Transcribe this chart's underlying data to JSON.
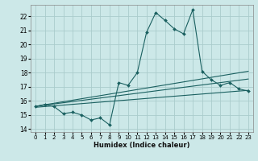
{
  "xlabel": "Humidex (Indice chaleur)",
  "bg_color": "#cce8e8",
  "grid_color": "#aacccc",
  "line_color": "#1a6060",
  "xlim": [
    -0.5,
    23.5
  ],
  "ylim": [
    13.8,
    22.8
  ],
  "yticks": [
    14,
    15,
    16,
    17,
    18,
    19,
    20,
    21,
    22
  ],
  "xticks": [
    0,
    1,
    2,
    3,
    4,
    5,
    6,
    7,
    8,
    9,
    10,
    11,
    12,
    13,
    14,
    15,
    16,
    17,
    18,
    19,
    20,
    21,
    22,
    23
  ],
  "main_line_x": [
    0,
    1,
    2,
    3,
    4,
    5,
    6,
    7,
    8,
    9,
    10,
    11,
    12,
    13,
    14,
    15,
    16,
    17,
    18,
    19,
    20,
    21,
    22,
    23
  ],
  "main_line_y": [
    15.6,
    15.75,
    15.6,
    15.1,
    15.2,
    15.0,
    14.65,
    14.8,
    14.3,
    17.3,
    17.1,
    18.0,
    20.85,
    22.25,
    21.7,
    21.1,
    20.75,
    22.45,
    18.1,
    17.5,
    17.1,
    17.3,
    16.85,
    16.7
  ],
  "trend1_x": [
    0,
    23
  ],
  "trend1_y": [
    15.62,
    18.1
  ],
  "trend2_x": [
    0,
    23
  ],
  "trend2_y": [
    15.62,
    17.55
  ],
  "trend3_x": [
    0,
    23
  ],
  "trend3_y": [
    15.55,
    16.75
  ]
}
